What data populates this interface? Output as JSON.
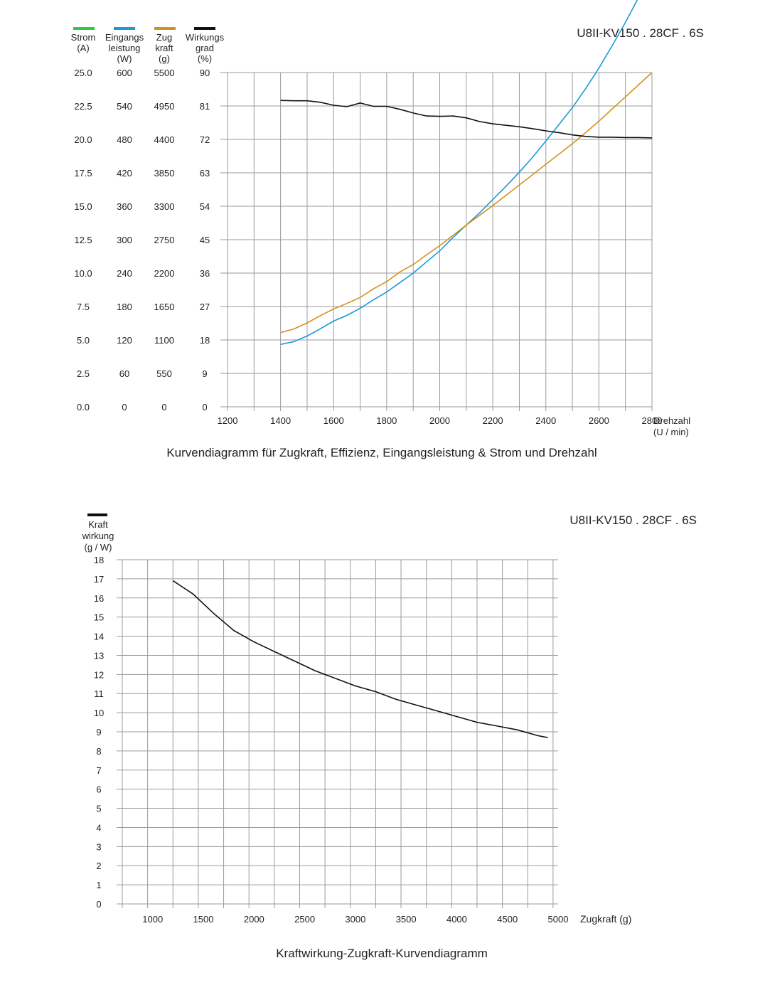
{
  "chart1": {
    "model": "U8II-KV150 . 28CF . 6S",
    "caption": "Kurvendiagramm für Zugkraft, Effizienz, Eingangsleistung &  Strom und Drehzahl",
    "xlabel": [
      "Drehzahl",
      "(U / min)"
    ],
    "x_ticks": [
      "1200",
      "1400",
      "1600",
      "1800",
      "2000",
      "2200",
      "2400",
      "2600",
      "2800"
    ],
    "axes": [
      {
        "header": [
          "Strom",
          "(A)"
        ],
        "ticks": [
          "0.0",
          "2.5",
          "5.0",
          "7.5",
          "10.0",
          "12.5",
          "15.0",
          "17.5",
          "20.0",
          "22.5",
          "25.0"
        ]
      },
      {
        "header": [
          "Eingangs",
          "leistung",
          "(W)"
        ],
        "ticks": [
          "0",
          "60",
          "120",
          "180",
          "240",
          "300",
          "360",
          "420",
          "480",
          "540",
          "600"
        ]
      },
      {
        "header": [
          "Zug",
          "kraft",
          "(g)"
        ],
        "ticks": [
          "0",
          "550",
          "1100",
          "1650",
          "2200",
          "2750",
          "3300",
          "3850",
          "4400",
          "4950",
          "5500"
        ]
      },
      {
        "header": [
          "Wirkungs",
          "grad",
          "(%)"
        ],
        "ticks": [
          "0",
          "9",
          "18",
          "27",
          "36",
          "45",
          "54",
          "63",
          "72",
          "81",
          "90"
        ]
      }
    ],
    "legend_colors": [
      "#2ecc40",
      "#1a9ad6",
      "#d4921a",
      "#111111"
    ]
  },
  "chart2": {
    "model": "U8II-KV150 . 28CF . 6S",
    "caption": "Kraftwirkung-Zugkraft-Kurvendiagramm",
    "ylabel": [
      "Kraft",
      "wirkung",
      "(g / W)"
    ],
    "xlabel": "Zugkraft (g)",
    "y_ticks": [
      "0",
      "1",
      "2",
      "3",
      "4",
      "5",
      "6",
      "7",
      "8",
      "9",
      "10",
      "11",
      "12",
      "13",
      "14",
      "15",
      "16",
      "17",
      "18"
    ],
    "x_ticks": [
      "1000",
      "1500",
      "2000",
      "2500",
      "3000",
      "3500",
      "4000",
      "4500",
      "5000"
    ],
    "legend_color": "#111111"
  },
  "chart_data": [
    {
      "type": "line",
      "x": [
        1400,
        1450,
        1500,
        1550,
        1600,
        1650,
        1700,
        1750,
        1800,
        1850,
        1900,
        1950,
        2000,
        2050,
        2100,
        2150,
        2200,
        2250,
        2300,
        2350,
        2400,
        2450,
        2500,
        2550,
        2600,
        2650,
        2700,
        2750,
        2800
      ],
      "xlim": [
        1200,
        2800
      ],
      "series": [
        {
          "axis": "Eingangsleistung (W)",
          "color": "#1a9ad6",
          "ylim": [
            0,
            600
          ],
          "values": [
            112,
            117,
            127,
            140,
            154,
            164,
            177,
            192,
            206,
            223,
            240,
            260,
            280,
            304,
            326,
            348,
            372,
            396,
            421,
            448,
            477,
            507,
            537,
            571,
            608,
            648,
            690,
            735,
            776
          ]
        },
        {
          "axis": "Zugkraft (g)",
          "color": "#d4921a",
          "ylim": [
            0,
            5500
          ],
          "values": [
            1220,
            1280,
            1380,
            1500,
            1610,
            1700,
            1800,
            1940,
            2060,
            2220,
            2340,
            2500,
            2650,
            2820,
            2990,
            3150,
            3310,
            3480,
            3650,
            3820,
            3990,
            4160,
            4330,
            4510,
            4700,
            4900,
            5100,
            5300,
            5500
          ]
        },
        {
          "axis": "Wirkungsgrad (%)",
          "color": "#111111",
          "ylim": [
            0,
            90
          ],
          "values": [
            82.5,
            82.4,
            82.4,
            82.0,
            81.2,
            80.8,
            81.8,
            80.9,
            80.9,
            80.1,
            79.1,
            78.3,
            78.2,
            78.3,
            77.8,
            76.8,
            76.2,
            75.8,
            75.4,
            74.9,
            74.3,
            73.8,
            73.2,
            72.8,
            72.6,
            72.6,
            72.5,
            72.5,
            72.4
          ]
        }
      ]
    },
    {
      "type": "line",
      "x": [
        1200,
        1400,
        1600,
        1800,
        2000,
        2200,
        2400,
        2600,
        2800,
        3000,
        3200,
        3400,
        3600,
        3800,
        4000,
        4200,
        4400,
        4600,
        4800,
        4900
      ],
      "values": [
        16.9,
        16.2,
        15.2,
        14.3,
        13.7,
        13.2,
        12.7,
        12.2,
        11.8,
        11.4,
        11.1,
        10.7,
        10.4,
        10.1,
        9.8,
        9.5,
        9.3,
        9.1,
        8.8,
        8.7
      ],
      "xlim": [
        700,
        5000
      ],
      "ylim": [
        0,
        18
      ],
      "color": "#111111"
    }
  ]
}
